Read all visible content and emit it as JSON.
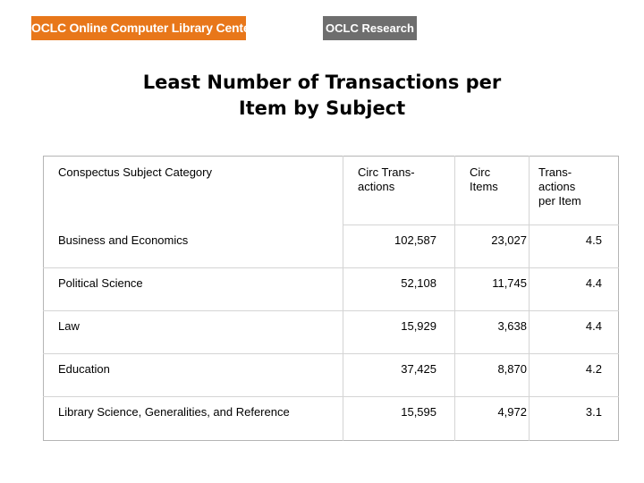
{
  "header": {
    "logo_left": "OCLC Online Computer Library Center",
    "logo_right": "OCLC Research"
  },
  "title": {
    "line1": "Least Number of Transactions per",
    "line2": "Item by Subject"
  },
  "table": {
    "headers": {
      "col1": "Conspectus Subject Category",
      "col2_line1": "Circ Trans-",
      "col2_line2": "actions",
      "col3_line1": "Circ",
      "col3_line2": "Items",
      "col4_line1": "Trans-",
      "col4_line2": "actions",
      "col4_line3": "per Item"
    },
    "rows": [
      {
        "subject": "Business and Economics",
        "circ_transactions": "102,587",
        "circ_items": "23,027",
        "per_item": "4.5"
      },
      {
        "subject": "Political Science",
        "circ_transactions": "52,108",
        "circ_items": "11,745",
        "per_item": "4.4"
      },
      {
        "subject": "Law",
        "circ_transactions": "15,929",
        "circ_items": "3,638",
        "per_item": "4.4"
      },
      {
        "subject": "Education",
        "circ_transactions": "37,425",
        "circ_items": "8,870",
        "per_item": "4.2"
      },
      {
        "subject": "Library Science, Generalities, and Reference",
        "circ_transactions": "15,595",
        "circ_items": "4,972",
        "per_item": "3.1"
      }
    ]
  },
  "colors": {
    "logo_left_bg": "#e8771a",
    "logo_right_bg": "#6e6e6e"
  }
}
